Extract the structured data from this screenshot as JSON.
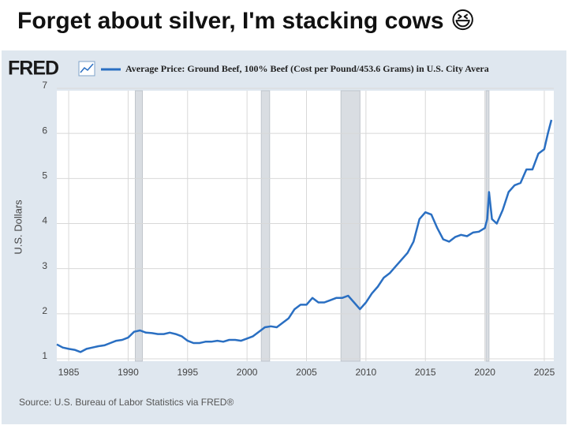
{
  "header": {
    "title": "Forget about silver, I'm stacking cows 😆"
  },
  "chart_data": {
    "type": "line",
    "logo": "FRED",
    "y_label": "U.S. Dollars",
    "source": "Source: U.S. Bureau of Labor Statistics via FRED®",
    "series": [
      {
        "name": "Average Price: Ground Beef, 100% Beef (Cost per Pound/453.6 Grams) in U.S. City Avera",
        "color": "#2a6fc2",
        "x": [
          1984,
          1984.5,
          1985,
          1985.5,
          1986,
          1986.5,
          1987,
          1987.5,
          1988,
          1988.5,
          1989,
          1989.5,
          1990,
          1990.5,
          1991,
          1991.5,
          1992,
          1992.5,
          1993,
          1993.5,
          1994,
          1994.5,
          1995,
          1995.5,
          1996,
          1996.5,
          1997,
          1997.5,
          1998,
          1998.5,
          1999,
          1999.5,
          2000,
          2000.5,
          2001,
          2001.5,
          2002,
          2002.5,
          2003,
          2003.5,
          2004,
          2004.5,
          2005,
          2005.5,
          2006,
          2006.5,
          2007,
          2007.5,
          2008,
          2008.5,
          2009,
          2009.5,
          2010,
          2010.5,
          2011,
          2011.5,
          2012,
          2012.5,
          2013,
          2013.5,
          2014,
          2014.5,
          2015,
          2015.5,
          2016,
          2016.5,
          2017,
          2017.5,
          2018,
          2018.5,
          2019,
          2019.5,
          2020,
          2020.2,
          2020.35,
          2020.6,
          2021,
          2021.5,
          2022,
          2022.5,
          2023,
          2023.5,
          2024,
          2024.5,
          2025,
          2025.3,
          2025.6
        ],
        "values": [
          1.32,
          1.25,
          1.22,
          1.2,
          1.15,
          1.22,
          1.25,
          1.28,
          1.3,
          1.35,
          1.4,
          1.42,
          1.47,
          1.6,
          1.63,
          1.58,
          1.57,
          1.55,
          1.55,
          1.58,
          1.55,
          1.5,
          1.4,
          1.35,
          1.35,
          1.38,
          1.38,
          1.4,
          1.38,
          1.42,
          1.42,
          1.4,
          1.45,
          1.5,
          1.6,
          1.7,
          1.72,
          1.7,
          1.8,
          1.9,
          2.1,
          2.2,
          2.2,
          2.35,
          2.25,
          2.25,
          2.3,
          2.35,
          2.35,
          2.4,
          2.25,
          2.1,
          2.25,
          2.45,
          2.6,
          2.8,
          2.9,
          3.05,
          3.2,
          3.35,
          3.6,
          4.1,
          4.25,
          4.2,
          3.9,
          3.65,
          3.6,
          3.7,
          3.75,
          3.72,
          3.8,
          3.82,
          3.9,
          4.1,
          4.7,
          4.1,
          4.0,
          4.3,
          4.7,
          4.85,
          4.9,
          5.2,
          5.2,
          5.55,
          5.65,
          6.0,
          6.3
        ]
      }
    ],
    "recessions": [
      [
        1990.6,
        1991.2
      ],
      [
        2001.2,
        2001.9
      ],
      [
        2007.9,
        2009.5
      ],
      [
        2020.1,
        2020.35
      ]
    ],
    "xlim": [
      1984,
      2025.8
    ],
    "xticks": [
      1985,
      1990,
      1995,
      2000,
      2005,
      2010,
      2015,
      2020,
      2025
    ],
    "ylim": [
      1,
      7
    ],
    "yticks": [
      1,
      2,
      3,
      4,
      5,
      6,
      7
    ],
    "grid": true
  }
}
